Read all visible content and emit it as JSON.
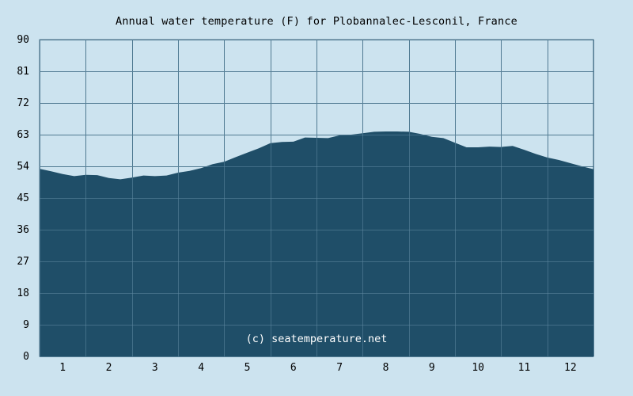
{
  "chart_data": {
    "type": "area",
    "title": "Annual water temperature (F) for Plobannalec-Lesconil, France",
    "xlabel": "",
    "ylabel": "",
    "x_tick_labels": [
      "1",
      "2",
      "3",
      "4",
      "5",
      "6",
      "7",
      "8",
      "9",
      "10",
      "11",
      "12"
    ],
    "y_tick_labels": [
      "0",
      "9",
      "18",
      "27",
      "36",
      "45",
      "54",
      "63",
      "72",
      "81",
      "90"
    ],
    "ylim": [
      0,
      90
    ],
    "xlim": [
      0.5,
      12.5
    ],
    "grid": true,
    "watermark": "(c) seatemperature.net",
    "colors": {
      "background": "#cce3ef",
      "fill": "#1f4e68",
      "grid": "#3f6880",
      "plot_border": "#4a6f86",
      "watermark": "#ffffff"
    },
    "series": [
      {
        "x": [
          0.5,
          0.75,
          1.0,
          1.25,
          1.5,
          1.75,
          2.0,
          2.25,
          2.5,
          2.75,
          3.0,
          3.25,
          3.5,
          3.75,
          4.0,
          4.25,
          4.5,
          4.75,
          5.0,
          5.25,
          5.5,
          5.75,
          6.0,
          6.25,
          6.5,
          6.75,
          7.0,
          7.25,
          7.5,
          7.75,
          8.0,
          8.25,
          8.5,
          8.75,
          9.0,
          9.25,
          9.5,
          9.75,
          10.0,
          10.25,
          10.5,
          10.75,
          11.0,
          11.25,
          11.5,
          11.75,
          12.0,
          12.25,
          12.5
        ],
        "values": [
          53.3,
          52.6,
          51.8,
          51.2,
          51.6,
          51.5,
          50.7,
          50.3,
          50.8,
          51.4,
          51.2,
          51.4,
          52.2,
          52.7,
          53.5,
          54.6,
          55.3,
          56.6,
          57.9,
          59.1,
          60.6,
          60.9,
          61.0,
          62.2,
          62.1,
          62.0,
          62.8,
          63.0,
          63.4,
          63.8,
          63.9,
          63.9,
          63.8,
          63.2,
          62.4,
          62.0,
          60.7,
          59.4,
          59.4,
          59.6,
          59.5,
          59.8,
          58.7,
          57.5,
          56.5,
          55.8,
          54.9,
          54.0,
          53.2
        ]
      }
    ]
  }
}
